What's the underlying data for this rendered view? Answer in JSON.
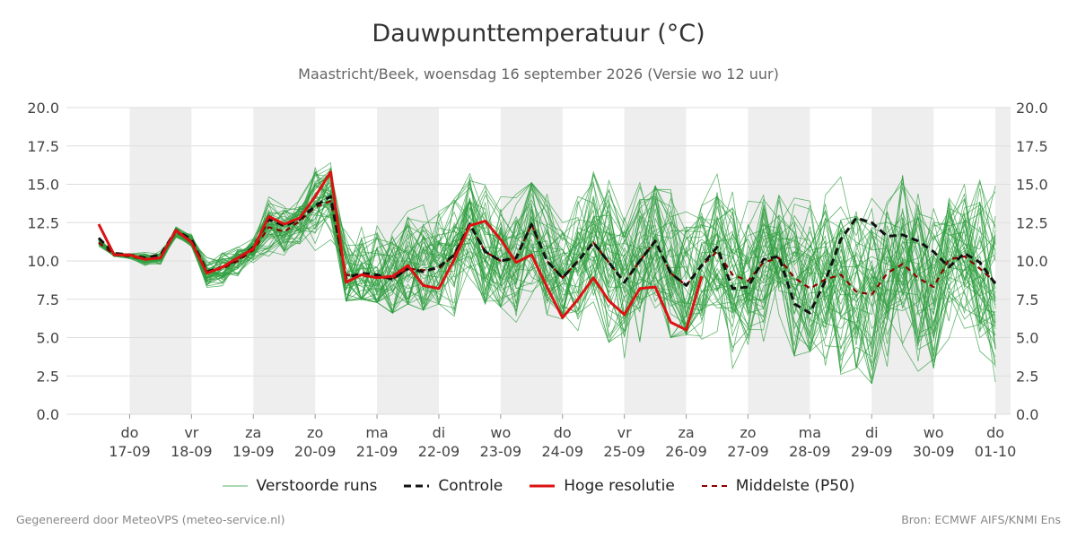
{
  "title": "Dauwpunttemperatuur (°C)",
  "subtitle": "Maastricht/Beek, woensdag 16 september 2026 (Versie wo 12 uur)",
  "footer_left": "Gegenereerd door MeteoVPS (meteo-service.nl)",
  "footer_right": "Bron: ECMWF AIFS/KNMI Ens",
  "colors": {
    "ensemble": "#2e9e3e",
    "control": "#111111",
    "hires": "#dd1111",
    "median": "#8b0000",
    "shade": "#eeeeee",
    "grid": "#dddddd"
  },
  "chart_data": {
    "type": "line",
    "ylim": [
      0,
      20
    ],
    "yticks": [
      "0.0",
      "2.5",
      "5.0",
      "7.5",
      "10.0",
      "12.5",
      "15.0",
      "17.5",
      "20.0"
    ],
    "x_unit": "days after 16-09 12 UTC, 6-hourly steps",
    "xticks": [
      {
        "day": "do",
        "date": "17-09"
      },
      {
        "day": "vr",
        "date": "18-09"
      },
      {
        "day": "za",
        "date": "19-09"
      },
      {
        "day": "zo",
        "date": "20-09"
      },
      {
        "day": "ma",
        "date": "21-09"
      },
      {
        "day": "di",
        "date": "22-09"
      },
      {
        "day": "wo",
        "date": "23-09"
      },
      {
        "day": "do",
        "date": "24-09"
      },
      {
        "day": "vr",
        "date": "25-09"
      },
      {
        "day": "za",
        "date": "26-09"
      },
      {
        "day": "zo",
        "date": "27-09"
      },
      {
        "day": "ma",
        "date": "28-09"
      },
      {
        "day": "di",
        "date": "29-09"
      },
      {
        "day": "wo",
        "date": "30-09"
      },
      {
        "day": "do",
        "date": "01-10"
      }
    ],
    "legend": [
      "Verstoorde runs",
      "Controle",
      "Hoge resolutie",
      "Middelste (P50)"
    ],
    "series": [
      {
        "name": "Hoge resolutie",
        "x_step": 0.25,
        "values": [
          12.4,
          10.4,
          10.4,
          10.1,
          10.2,
          12.0,
          11.2,
          9.2,
          9.6,
          10.2,
          10.8,
          12.9,
          12.4,
          12.8,
          14.2,
          15.8,
          8.6,
          9.1,
          8.9,
          9.0,
          9.7,
          8.4,
          8.2,
          10.1,
          12.3,
          12.6,
          11.4,
          9.9,
          10.4,
          8.3,
          6.3,
          7.5,
          8.9,
          7.4,
          6.5,
          8.2,
          8.3,
          6.0,
          5.5,
          9.0
        ]
      },
      {
        "name": "Controle",
        "x_step": 0.25,
        "values": [
          11.5,
          10.5,
          10.4,
          10.2,
          10.4,
          12.0,
          11.4,
          9.3,
          9.6,
          10.1,
          10.9,
          12.7,
          12.3,
          12.7,
          13.6,
          14.2,
          8.9,
          9.2,
          9.1,
          8.8,
          9.5,
          9.3,
          9.6,
          10.4,
          12.4,
          10.6,
          10.0,
          10.2,
          12.4,
          10.0,
          8.9,
          10.0,
          11.2,
          9.9,
          8.6,
          10.0,
          11.3,
          9.2,
          8.4,
          9.7,
          10.9,
          8.2,
          8.3,
          10.1,
          10.3,
          7.2,
          6.6,
          8.7,
          11.4,
          12.8,
          12.5,
          11.6,
          11.7,
          11.3,
          10.6,
          9.6,
          10.5,
          9.9,
          8.5,
          12.7
        ]
      },
      {
        "name": "Middelste (P50)",
        "x_step": 0.25,
        "values": [
          11.2,
          10.4,
          10.3,
          10.1,
          10.2,
          11.9,
          11.3,
          9.3,
          9.5,
          10.0,
          10.7,
          12.2,
          11.9,
          12.6,
          13.5,
          13.9,
          9.1,
          9.0,
          9.0,
          8.8,
          9.5,
          9.4,
          9.5,
          10.4,
          12.4,
          10.6,
          10.0,
          10.2,
          12.4,
          10.0,
          8.9,
          10.0,
          11.2,
          9.9,
          8.6,
          10.0,
          11.3,
          9.2,
          8.4,
          9.7,
          10.6,
          9.1,
          8.7,
          9.9,
          10.2,
          8.9,
          8.2,
          8.8,
          9.1,
          8.0,
          7.8,
          9.2,
          9.8,
          8.9,
          8.3,
          10.1,
          10.3,
          9.5,
          8.6,
          9.6
        ]
      }
    ],
    "ensemble": {
      "name": "Verstoorde runs",
      "x_step": 0.25,
      "members": 50,
      "band_min": [
        10.2,
        9.9,
        9.8,
        8.7,
        9.2,
        11.4,
        10.4,
        7.1,
        7.8,
        8.6,
        9.6,
        9.0,
        10.0,
        11.0,
        10.0,
        10.5,
        7.4,
        7.5,
        7.3,
        6.6,
        7.2,
        6.8,
        7.2,
        6.4,
        7.5,
        7.2,
        7.0,
        6.0,
        5.5,
        6.5,
        6.2,
        4.5,
        5.2,
        4.7,
        3.5,
        3.0,
        3.8,
        5.0,
        5.2,
        2.3,
        4.8,
        2.2,
        2.9,
        3.9,
        5.0,
        3.8,
        4.1,
        3.0,
        2.6,
        3.0,
        2.0,
        2.4,
        1.2,
        2.8,
        3.0,
        4.2,
        4.3,
        3.5,
        2.1,
        1.5
      ],
      "band_max": [
        13.0,
        11.0,
        11.0,
        11.2,
        11.4,
        13.0,
        12.2,
        11.0,
        11.3,
        11.6,
        12.0,
        14.4,
        14.1,
        14.8,
        16.2,
        16.4,
        15.6,
        14.4,
        15.8,
        15.4,
        16.3,
        16.4,
        15.9,
        15.2,
        16.5,
        17.0,
        16.5,
        15.6,
        15.1,
        15.9,
        14.6,
        14.2,
        15.8,
        17.6,
        14.2,
        15.1,
        14.9,
        17.0,
        16.1,
        13.6,
        15.8,
        15.2,
        13.9,
        16.9,
        15.1,
        17.2,
        16.1,
        15.8,
        16.0,
        17.3,
        17.0,
        15.5,
        15.6,
        16.8,
        16.1,
        14.9,
        15.3,
        15.9,
        15.6,
        16.6
      ]
    }
  }
}
